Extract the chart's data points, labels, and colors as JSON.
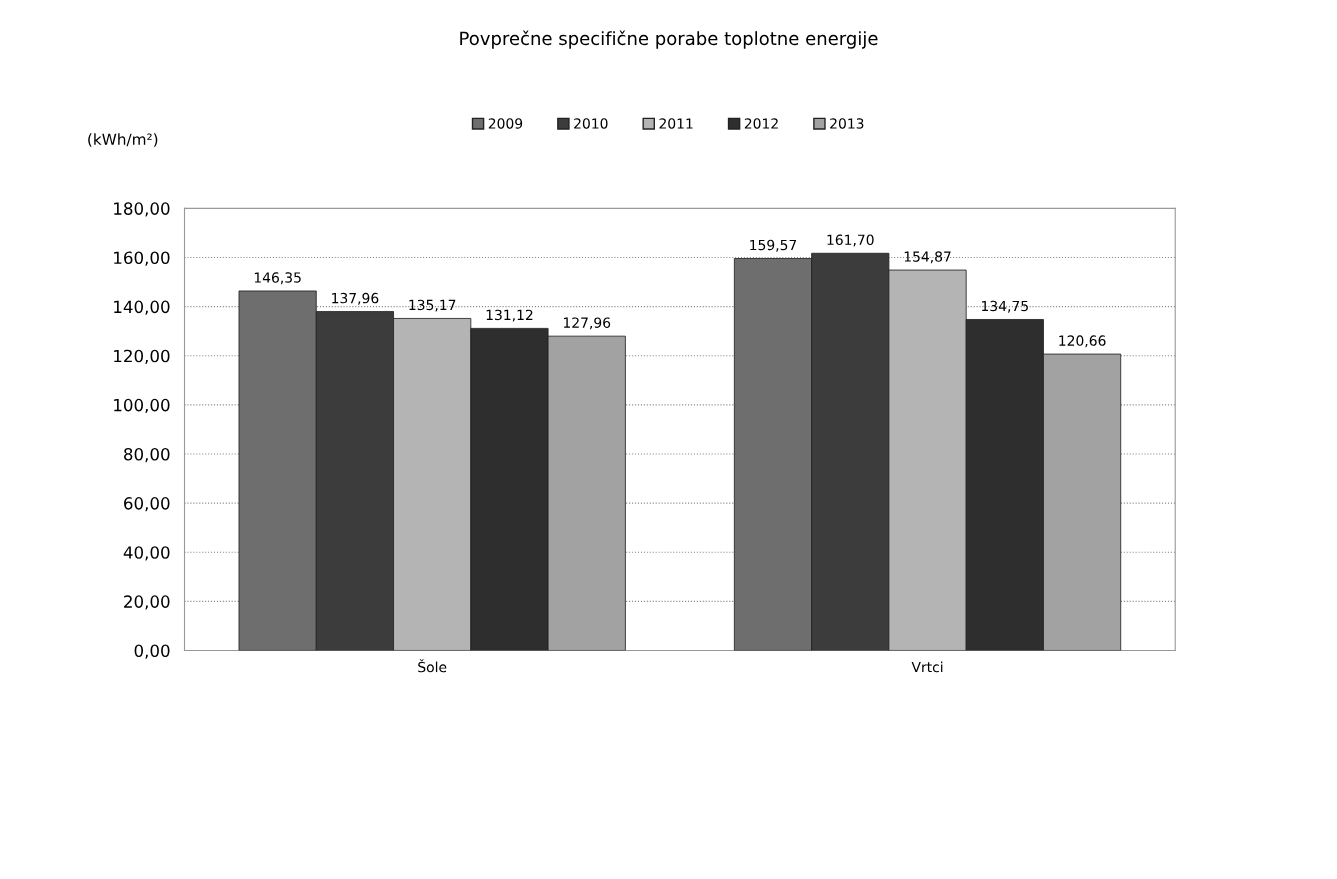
{
  "chart_data": {
    "type": "bar",
    "title": "Povprečne specifične porabe toplotne energije",
    "ylabel": "(kWh/m²)",
    "categories": [
      "Šole",
      "Vrtci"
    ],
    "series": [
      {
        "name": "2009",
        "color": "#6e6e6e",
        "values": [
          146.35,
          159.57
        ],
        "value_labels": [
          "146,35",
          "159,57"
        ]
      },
      {
        "name": "2010",
        "color": "#3c3c3c",
        "values": [
          137.96,
          161.7
        ],
        "value_labels": [
          "137,96",
          "161,70"
        ]
      },
      {
        "name": "2011",
        "color": "#b4b4b4",
        "values": [
          135.17,
          154.87
        ],
        "value_labels": [
          "135,17",
          "154,87"
        ]
      },
      {
        "name": "2012",
        "color": "#2e2e2e",
        "values": [
          131.12,
          134.75
        ],
        "value_labels": [
          "131,12",
          "134,75"
        ]
      },
      {
        "name": "2013",
        "color": "#a2a2a2",
        "values": [
          127.96,
          120.66
        ],
        "value_labels": [
          "127,96",
          "120,66"
        ]
      }
    ],
    "ylim": [
      0,
      180
    ],
    "yticks": [
      {
        "value": 0,
        "label": "0,00"
      },
      {
        "value": 20,
        "label": "20,00"
      },
      {
        "value": 40,
        "label": "40,00"
      },
      {
        "value": 60,
        "label": "60,00"
      },
      {
        "value": 80,
        "label": "80,00"
      },
      {
        "value": 100,
        "label": "100,00"
      },
      {
        "value": 120,
        "label": "120,00"
      },
      {
        "value": 140,
        "label": "140,00"
      },
      {
        "value": 160,
        "label": "160,00"
      },
      {
        "value": 180,
        "label": "180,00"
      }
    ],
    "grid": "y",
    "legend": "top"
  }
}
